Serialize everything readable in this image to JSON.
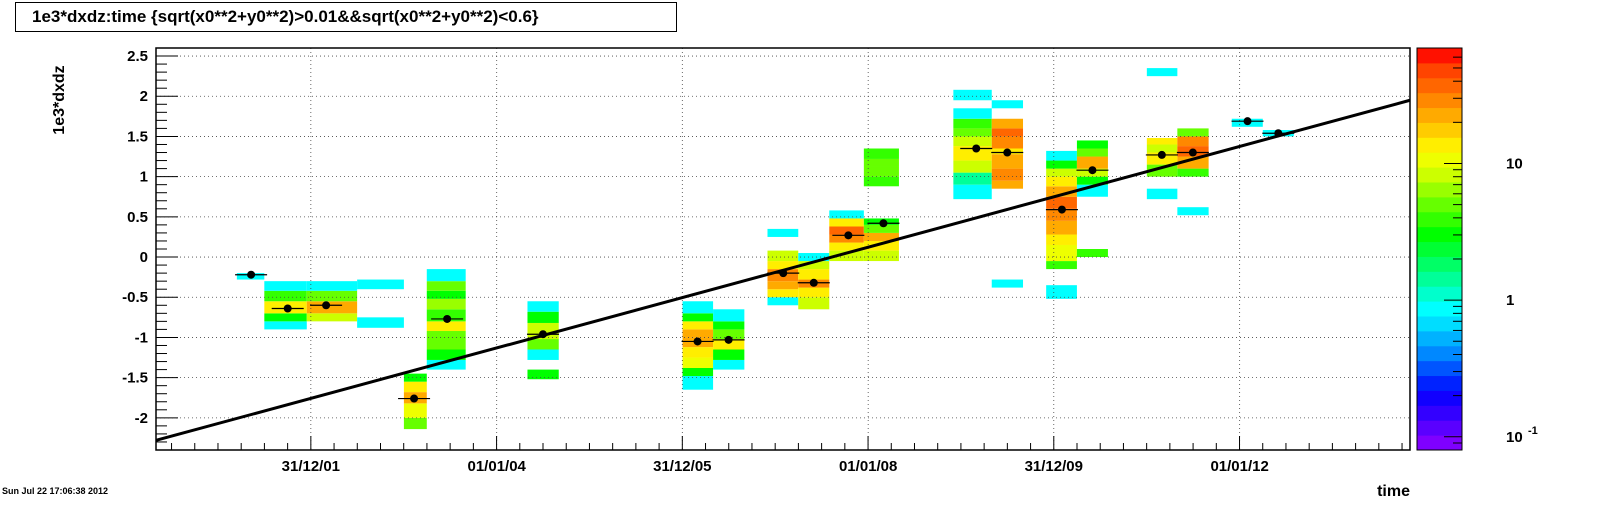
{
  "chart_data": {
    "type": "heatmap",
    "title": "1e3*dxdz:time {sqrt(x0**2+y0**2)>0.01&&sqrt(x0**2+y0**2)<0.6}",
    "xlabel": "time",
    "ylabel": "1e3*dxdz",
    "timestamp": "Sun Jul 22 17:06:38 2012",
    "xlim": [
      "2000-05-01",
      "2013-11-01"
    ],
    "ylim": [
      -2.4,
      2.6
    ],
    "x_ticks": [
      {
        "date": "2001-12-31",
        "label": "31/12/01"
      },
      {
        "date": "2004-01-01",
        "label": "01/01/04"
      },
      {
        "date": "2005-12-31",
        "label": "31/12/05"
      },
      {
        "date": "2008-01-01",
        "label": "01/01/08"
      },
      {
        "date": "2009-12-31",
        "label": "31/12/09"
      },
      {
        "date": "2012-01-01",
        "label": "01/01/12"
      }
    ],
    "y_ticks": [
      {
        "value": -2,
        "label": "-2"
      },
      {
        "value": -1.5,
        "label": "-1.5"
      },
      {
        "value": -1,
        "label": "-1"
      },
      {
        "value": -0.5,
        "label": "-0.5"
      },
      {
        "value": 0,
        "label": "0"
      },
      {
        "value": 0.5,
        "label": "0.5"
      },
      {
        "value": 1,
        "label": "1"
      },
      {
        "value": 1.5,
        "label": "1.5"
      },
      {
        "value": 2,
        "label": "2"
      },
      {
        "value": 2.5,
        "label": "2.5"
      }
    ],
    "grid": true,
    "colorbar": {
      "log_scale": true,
      "min": 0.08,
      "max": 70,
      "tick_labels": [
        {
          "value": 0.1,
          "label": "10",
          "exponent": "-1"
        },
        {
          "value": 1,
          "label": "1",
          "exponent": ""
        },
        {
          "value": 10,
          "label": "10",
          "exponent": ""
        }
      ],
      "colors": [
        "#7f00ff",
        "#5a00ff",
        "#3300ff",
        "#1100ff",
        "#0022ff",
        "#0055ff",
        "#0088ff",
        "#00b2ff",
        "#00ddff",
        "#00ffff",
        "#00ffcc",
        "#00ff99",
        "#00ff66",
        "#00ff33",
        "#00ff00",
        "#33ff00",
        "#66ff00",
        "#99ff00",
        "#ccff00",
        "#eeff00",
        "#ffee00",
        "#ffcc00",
        "#ffaa00",
        "#ff8800",
        "#ff6600",
        "#ff4400",
        "#ff1100"
      ]
    },
    "fit_line": {
      "x0": "2000-05-01",
      "y0": -2.28,
      "x1": "2013-11-01",
      "y1": 1.95
    },
    "columns": [
      {
        "x0": "2001-03-15",
        "x1": "2001-07-01",
        "cells": [
          [
            -0.28,
            -0.2,
            0.9
          ]
        ]
      },
      {
        "x0": "2001-07-01",
        "x1": "2001-12-15",
        "cells": [
          [
            -0.9,
            -0.8,
            0.9
          ],
          [
            -0.8,
            -0.7,
            3
          ],
          [
            -0.7,
            -0.55,
            13
          ],
          [
            -0.55,
            -0.42,
            4
          ],
          [
            -0.42,
            -0.3,
            0.9
          ]
        ]
      },
      {
        "x0": "2001-12-15",
        "x1": "2002-07-01",
        "cells": [
          [
            -0.8,
            -0.7,
            9
          ],
          [
            -0.7,
            -0.55,
            20
          ],
          [
            -0.55,
            -0.42,
            5
          ],
          [
            -0.42,
            -0.3,
            0.9
          ]
        ]
      },
      {
        "x0": "2002-07-01",
        "x1": "2003-01-01",
        "cells": [
          [
            -0.88,
            -0.75,
            0.9
          ],
          [
            -0.4,
            -0.28,
            0.9
          ]
        ]
      },
      {
        "x0": "2003-01-01",
        "x1": "2003-04-01",
        "cells": [
          [
            -2.14,
            -2.0,
            5
          ],
          [
            -2.0,
            -1.82,
            10
          ],
          [
            -1.82,
            -1.68,
            22
          ],
          [
            -1.68,
            -1.55,
            13
          ],
          [
            -1.55,
            -1.45,
            3
          ]
        ]
      },
      {
        "x0": "2003-04-01",
        "x1": "2003-09-01",
        "cells": [
          [
            -1.4,
            -1.28,
            0.9
          ],
          [
            -1.28,
            -1.15,
            3
          ],
          [
            -1.15,
            -0.92,
            5
          ],
          [
            -0.92,
            -0.8,
            15
          ],
          [
            -0.8,
            -0.65,
            4
          ],
          [
            -0.65,
            -0.52,
            6
          ],
          [
            -0.52,
            -0.42,
            3
          ],
          [
            -0.42,
            -0.3,
            5
          ],
          [
            -0.3,
            -0.15,
            0.9
          ]
        ]
      },
      {
        "x0": "2004-05-01",
        "x1": "2004-09-01",
        "cells": [
          [
            -1.52,
            -1.4,
            3
          ],
          [
            -1.28,
            -1.15,
            0.9
          ],
          [
            -1.15,
            -1.02,
            5
          ],
          [
            -1.02,
            -0.82,
            9
          ],
          [
            -0.82,
            -0.68,
            3
          ],
          [
            -0.68,
            -0.55,
            0.9
          ]
        ]
      },
      {
        "x0": "2006-01-01",
        "x1": "2006-05-01",
        "cells": [
          [
            -1.65,
            -1.48,
            0.9
          ],
          [
            -1.48,
            -1.38,
            3
          ],
          [
            -1.38,
            -1.25,
            10
          ],
          [
            -1.25,
            -1.12,
            13
          ],
          [
            -1.12,
            -1.0,
            20
          ],
          [
            -1.0,
            -0.9,
            22
          ],
          [
            -0.9,
            -0.8,
            13
          ],
          [
            -0.8,
            -0.7,
            3
          ],
          [
            -0.7,
            -0.55,
            0.9
          ]
        ]
      },
      {
        "x0": "2006-05-01",
        "x1": "2006-09-01",
        "cells": [
          [
            -1.4,
            -1.28,
            0.9
          ],
          [
            -1.28,
            -1.15,
            3
          ],
          [
            -1.15,
            -1.02,
            13
          ],
          [
            -1.02,
            -0.9,
            5
          ],
          [
            -0.9,
            -0.8,
            3
          ],
          [
            -0.8,
            -0.65,
            0.9
          ]
        ]
      },
      {
        "x0": "2006-12-01",
        "x1": "2007-04-01",
        "cells": [
          [
            -0.6,
            -0.5,
            0.9
          ],
          [
            -0.5,
            -0.4,
            13
          ],
          [
            -0.4,
            -0.3,
            22
          ],
          [
            -0.3,
            -0.15,
            30
          ],
          [
            -0.15,
            -0.05,
            13
          ],
          [
            -0.05,
            0.08,
            9
          ],
          [
            0.25,
            0.35,
            0.9
          ]
        ]
      },
      {
        "x0": "2007-04-01",
        "x1": "2007-08-01",
        "cells": [
          [
            -0.65,
            -0.5,
            9
          ],
          [
            -0.5,
            -0.38,
            13
          ],
          [
            -0.38,
            -0.28,
            30
          ],
          [
            -0.28,
            -0.15,
            13
          ],
          [
            -0.15,
            -0.05,
            9
          ],
          [
            -0.05,
            0.05,
            0.9
          ]
        ]
      },
      {
        "x0": "2007-08-01",
        "x1": "2007-12-15",
        "cells": [
          [
            -0.05,
            0.08,
            9
          ],
          [
            0.08,
            0.18,
            13
          ],
          [
            0.18,
            0.28,
            30
          ],
          [
            0.28,
            0.38,
            40
          ],
          [
            0.38,
            0.48,
            13
          ],
          [
            0.48,
            0.58,
            0.9
          ]
        ]
      },
      {
        "x0": "2007-12-15",
        "x1": "2008-05-01",
        "cells": [
          [
            -0.05,
            0.08,
            9
          ],
          [
            0.08,
            0.2,
            13
          ],
          [
            0.2,
            0.3,
            22
          ],
          [
            0.3,
            0.4,
            5
          ],
          [
            0.4,
            0.48,
            3
          ],
          [
            0.88,
            1.0,
            4
          ],
          [
            1.0,
            1.12,
            5
          ],
          [
            1.12,
            1.22,
            5
          ],
          [
            1.22,
            1.35,
            4
          ]
        ]
      },
      {
        "x0": "2008-12-01",
        "x1": "2009-05-01",
        "cells": [
          [
            0.72,
            0.9,
            0.9
          ],
          [
            0.9,
            1.05,
            1.5
          ],
          [
            1.05,
            1.2,
            9
          ],
          [
            1.2,
            1.38,
            13
          ],
          [
            1.38,
            1.5,
            9
          ],
          [
            1.5,
            1.6,
            5
          ],
          [
            1.6,
            1.72,
            4
          ],
          [
            1.72,
            1.85,
            0.9
          ],
          [
            1.95,
            2.08,
            0.9
          ]
        ]
      },
      {
        "x0": "2009-05-01",
        "x1": "2009-09-01",
        "cells": [
          [
            -0.38,
            -0.28,
            0.9
          ],
          [
            0.85,
            0.95,
            22
          ],
          [
            0.95,
            1.1,
            30
          ],
          [
            1.1,
            1.28,
            22
          ],
          [
            1.28,
            1.35,
            13
          ],
          [
            1.35,
            1.5,
            30
          ],
          [
            1.5,
            1.6,
            40
          ],
          [
            1.6,
            1.72,
            22
          ],
          [
            1.85,
            1.95,
            0.9
          ]
        ]
      },
      {
        "x0": "2009-12-01",
        "x1": "2010-04-01",
        "cells": [
          [
            -0.52,
            -0.35,
            0.9
          ],
          [
            -0.15,
            -0.05,
            4
          ],
          [
            -0.05,
            0.15,
            10
          ],
          [
            0.15,
            0.28,
            13
          ],
          [
            0.28,
            0.45,
            22
          ],
          [
            0.45,
            0.6,
            30
          ],
          [
            0.6,
            0.75,
            40
          ],
          [
            0.75,
            0.88,
            22
          ],
          [
            0.88,
            1.0,
            13
          ],
          [
            1.0,
            1.1,
            9
          ],
          [
            1.1,
            1.2,
            3
          ],
          [
            1.2,
            1.32,
            0.9
          ]
        ]
      },
      {
        "x0": "2010-04-01",
        "x1": "2010-08-01",
        "cells": [
          [
            0.0,
            0.1,
            4
          ],
          [
            0.75,
            0.9,
            0.9
          ],
          [
            0.9,
            1.0,
            3
          ],
          [
            1.0,
            1.1,
            9
          ],
          [
            1.1,
            1.25,
            20
          ],
          [
            1.25,
            1.35,
            5
          ],
          [
            1.35,
            1.45,
            3
          ]
        ]
      },
      {
        "x0": "2011-01-01",
        "x1": "2011-05-01",
        "cells": [
          [
            0.72,
            0.85,
            0.9
          ],
          [
            1.0,
            1.15,
            5
          ],
          [
            1.15,
            1.3,
            13
          ],
          [
            1.3,
            1.4,
            9
          ],
          [
            1.4,
            1.48,
            13
          ],
          [
            2.25,
            2.35,
            0.9
          ]
        ]
      },
      {
        "x0": "2011-05-01",
        "x1": "2011-09-01",
        "cells": [
          [
            0.52,
            0.62,
            0.9
          ],
          [
            1.0,
            1.1,
            4
          ],
          [
            1.1,
            1.25,
            22
          ],
          [
            1.25,
            1.38,
            40
          ],
          [
            1.38,
            1.5,
            30
          ],
          [
            1.5,
            1.6,
            5
          ]
        ]
      },
      {
        "x0": "2011-12-01",
        "x1": "2012-04-01",
        "cells": [
          [
            1.62,
            1.72,
            0.9
          ]
        ]
      },
      {
        "x0": "2012-04-01",
        "x1": "2012-08-01",
        "cells": [
          [
            1.5,
            1.58,
            0.9
          ]
        ]
      }
    ],
    "profile_points": [
      {
        "x": "2001-05-10",
        "y": -0.22
      },
      {
        "x": "2001-10-01",
        "y": -0.64
      },
      {
        "x": "2002-03-01",
        "y": -0.6
      },
      {
        "x": "2003-02-10",
        "y": -1.76
      },
      {
        "x": "2003-06-20",
        "y": -0.77
      },
      {
        "x": "2004-07-01",
        "y": -0.96
      },
      {
        "x": "2006-03-01",
        "y": -1.05
      },
      {
        "x": "2006-07-01",
        "y": -1.03
      },
      {
        "x": "2007-02-01",
        "y": -0.2
      },
      {
        "x": "2007-06-01",
        "y": -0.32
      },
      {
        "x": "2007-10-15",
        "y": 0.27
      },
      {
        "x": "2008-03-01",
        "y": 0.42
      },
      {
        "x": "2009-03-01",
        "y": 1.35
      },
      {
        "x": "2009-07-01",
        "y": 1.3
      },
      {
        "x": "2010-02-01",
        "y": 0.59
      },
      {
        "x": "2010-06-01",
        "y": 1.08
      },
      {
        "x": "2011-03-01",
        "y": 1.27
      },
      {
        "x": "2011-07-01",
        "y": 1.3
      },
      {
        "x": "2012-02-01",
        "y": 1.69
      },
      {
        "x": "2012-06-01",
        "y": 1.54
      }
    ]
  }
}
